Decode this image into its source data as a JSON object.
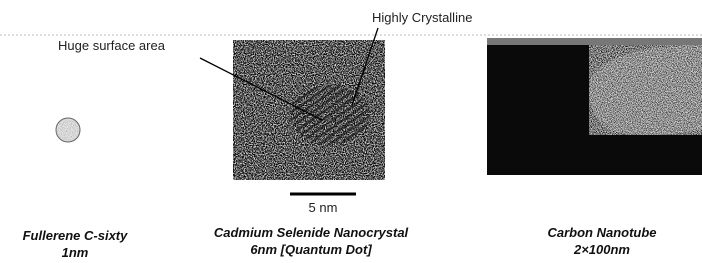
{
  "annotations": {
    "crystalline": "Highly Crystalline",
    "surface": "Huge surface area"
  },
  "scale_bar": "5 nm",
  "captions": [
    {
      "name": "Fullerene C-sixty",
      "size": "1nm"
    },
    {
      "name": "Cadmium Selenide Nanocrystal",
      "size": "6nm [Quantum Dot]"
    },
    {
      "name": "Carbon Nanotube",
      "size": "2×100nm"
    }
  ]
}
